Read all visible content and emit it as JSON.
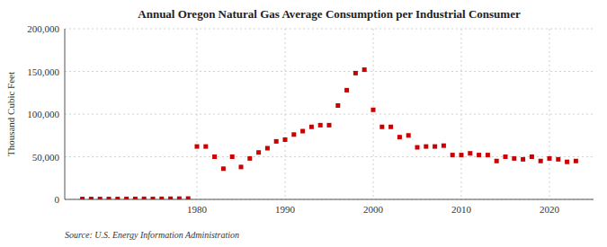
{
  "chart_data": {
    "type": "scatter",
    "title": "Annual Oregon Natural Gas Average Consumption per Industrial Consumer",
    "ylabel": "Thousand Cubic Feet",
    "source": "Source: U.S. Energy Information Administration",
    "x": [
      1967,
      1968,
      1969,
      1970,
      1971,
      1972,
      1973,
      1974,
      1975,
      1976,
      1977,
      1978,
      1979,
      1980,
      1981,
      1982,
      1983,
      1984,
      1985,
      1986,
      1987,
      1988,
      1989,
      1990,
      1991,
      1992,
      1993,
      1994,
      1995,
      1996,
      1997,
      1998,
      1999,
      2000,
      2001,
      2002,
      2003,
      2004,
      2005,
      2006,
      2007,
      2008,
      2009,
      2010,
      2011,
      2012,
      2013,
      2014,
      2015,
      2016,
      2017,
      2018,
      2019,
      2020,
      2021,
      2022,
      2023
    ],
    "values": [
      500,
      500,
      500,
      500,
      500,
      600,
      600,
      700,
      600,
      700,
      800,
      900,
      1000,
      62000,
      62000,
      50000,
      36000,
      50000,
      38000,
      48000,
      55000,
      60000,
      68000,
      70000,
      76000,
      80000,
      85000,
      87000,
      87000,
      110000,
      128000,
      148000,
      152000,
      105000,
      85000,
      85000,
      73000,
      75000,
      61000,
      62000,
      62000,
      63000,
      52000,
      52000,
      54000,
      52000,
      52000,
      45000,
      50000,
      48000,
      47000,
      50000,
      45000,
      48000,
      47000,
      44000,
      45000
    ],
    "color": "#cc0000",
    "marker": "square",
    "xlim": [
      1965,
      2025
    ],
    "xticks": [
      1980,
      1990,
      2000,
      2010,
      2020
    ],
    "ylim": [
      0,
      200000
    ],
    "yticks": [
      0,
      {
        "value": 50000,
        "label": "50,000"
      },
      {
        "value": 100000,
        "label": "100,000"
      },
      {
        "value": 150000,
        "label": "150,000"
      },
      {
        "value": 200000,
        "label": "200,000"
      }
    ],
    "grid": true
  }
}
